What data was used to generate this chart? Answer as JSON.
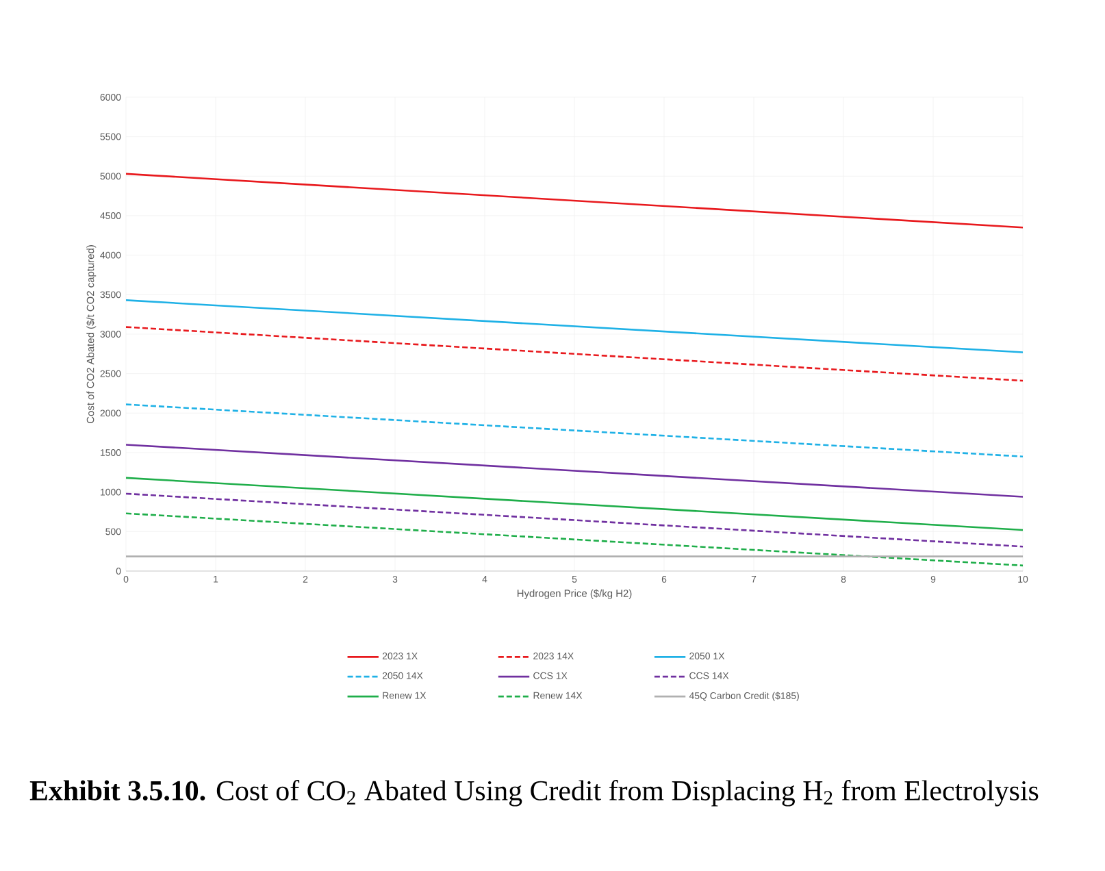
{
  "chart_data": {
    "type": "line",
    "title": "**Exhibit 3.5.10.**  Cost of CO$_{2}$ Abated Using Credit from Displacing H$_{2}$ from Electrolysis",
    "xlabel": "Hydrogen Price ($/kg H2)",
    "ylabel": "Cost of CO2 Abated ($/t CO2 captured)",
    "x": [
      0,
      10
    ],
    "xlim": [
      0,
      10
    ],
    "xticks": [
      0,
      1,
      2,
      3,
      4,
      5,
      6,
      7,
      8,
      9,
      10
    ],
    "ylim": [
      0,
      6000
    ],
    "yticks": [
      0,
      500,
      1000,
      1500,
      2000,
      2500,
      3000,
      3500,
      4000,
      4500,
      5000,
      5500,
      6000
    ],
    "grid": true,
    "legend": "bottom",
    "marker": "none",
    "series": [
      {
        "name": "2023 1X",
        "color": "#e8191d",
        "line_style": "solid",
        "values": [
          5030,
          4350
        ]
      },
      {
        "name": "2023 14X",
        "color": "#e8191d",
        "line_style": "dashed",
        "values": [
          3090,
          2410
        ]
      },
      {
        "name": "2050 1X",
        "color": "#1fb1e6",
        "line_style": "solid",
        "values": [
          3430,
          2770
        ]
      },
      {
        "name": "2050 14X",
        "color": "#1fb1e6",
        "line_style": "dashed",
        "values": [
          2110,
          1450
        ]
      },
      {
        "name": "CCS 1X",
        "color": "#7030a0",
        "line_style": "solid",
        "values": [
          1600,
          940
        ]
      },
      {
        "name": "CCS 14X",
        "color": "#7030a0",
        "line_style": "dashed",
        "values": [
          980,
          310
        ]
      },
      {
        "name": "Renew 1X",
        "color": "#1fae4a",
        "line_style": "solid",
        "values": [
          1180,
          520
        ]
      },
      {
        "name": "Renew 14X",
        "color": "#1fae4a",
        "line_style": "dashed",
        "values": [
          730,
          70
        ]
      },
      {
        "name": "45Q Carbon Credit ($185)",
        "color": "#b0b0b0",
        "line_style": "solid",
        "values": [
          185,
          185
        ]
      }
    ]
  }
}
